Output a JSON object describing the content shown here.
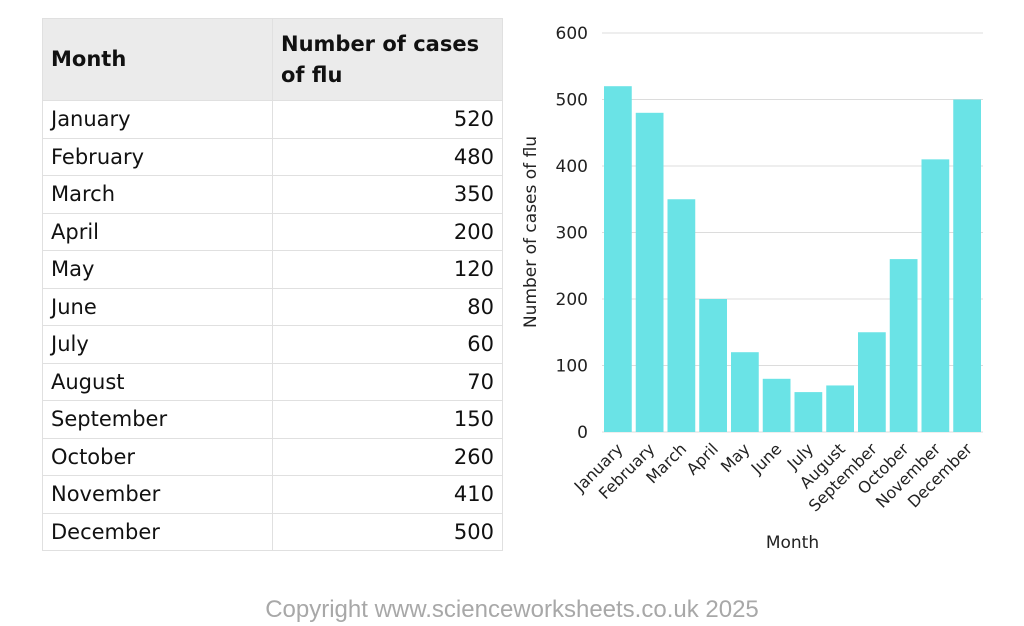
{
  "table": {
    "headers": [
      "Month",
      "Number of cases of flu"
    ],
    "rows": [
      [
        "January",
        "520"
      ],
      [
        "February",
        "480"
      ],
      [
        "March",
        "350"
      ],
      [
        "April",
        "200"
      ],
      [
        "May",
        "120"
      ],
      [
        "June",
        "80"
      ],
      [
        "July",
        "60"
      ],
      [
        "August",
        "70"
      ],
      [
        "September",
        "150"
      ],
      [
        "October",
        "260"
      ],
      [
        "November",
        "410"
      ],
      [
        "December",
        "500"
      ]
    ]
  },
  "chart_data": {
    "type": "bar",
    "categories": [
      "January",
      "February",
      "March",
      "April",
      "May",
      "June",
      "July",
      "August",
      "September",
      "October",
      "November",
      "December"
    ],
    "values": [
      520,
      480,
      350,
      200,
      120,
      80,
      60,
      70,
      150,
      260,
      410,
      500
    ],
    "xlabel": "Month",
    "ylabel": "Number of cases of flu",
    "ylim": [
      0,
      600
    ],
    "yticks": [
      0,
      100,
      200,
      300,
      400,
      500,
      600
    ],
    "grid": true,
    "bar_color": "#6ae3e6"
  },
  "footer": "Copyright www.scienceworksheets.co.uk 2025"
}
